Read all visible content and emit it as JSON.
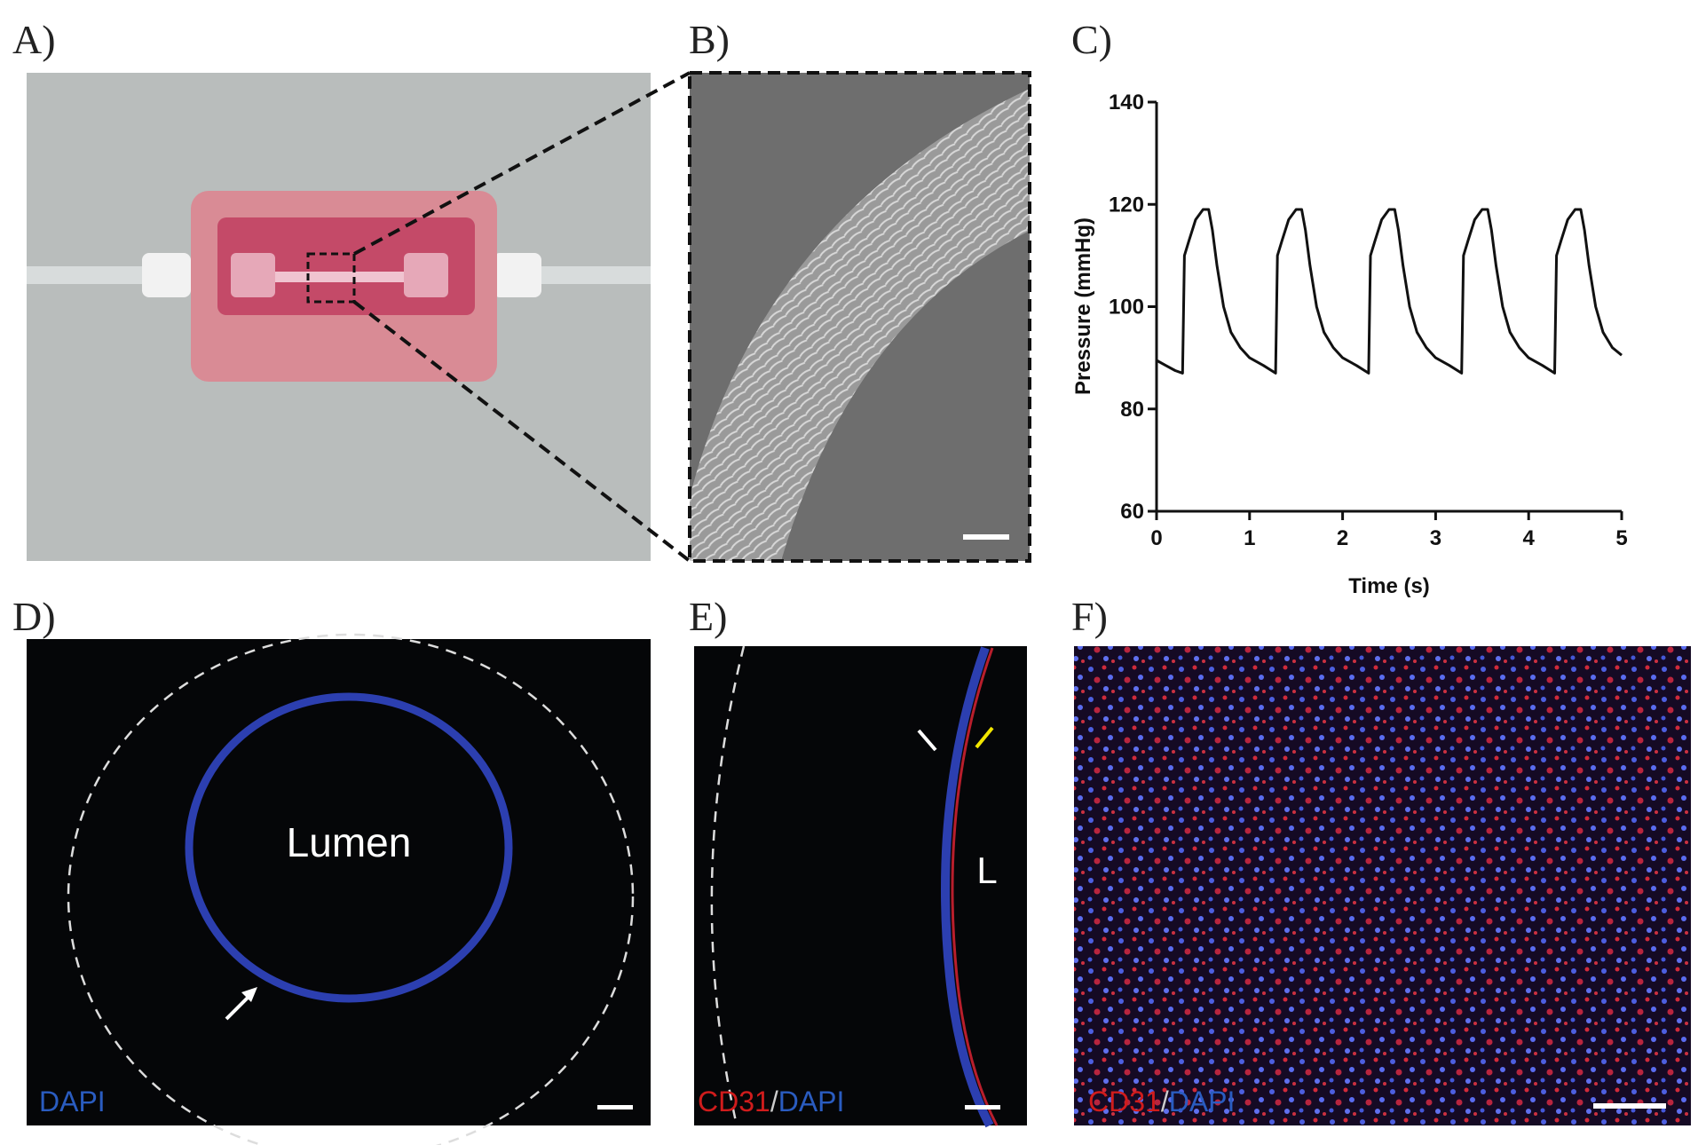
{
  "panels": {
    "a": {
      "label": "A)"
    },
    "b": {
      "label": "B)"
    },
    "c": {
      "label": "C)"
    },
    "d": {
      "label": "D)",
      "lumen": "Lumen",
      "stain": "DAPI"
    },
    "e": {
      "label": "E)",
      "lumen": "L",
      "stain_red": "CD31",
      "separator": "/",
      "stain_blue": "DAPI"
    },
    "f": {
      "label": "F)",
      "stain_red": "CD31",
      "separator": "/",
      "stain_blue": "DAPI"
    }
  },
  "chart_data": {
    "type": "line",
    "xlabel": "Time (s)",
    "ylabel": "Pressure (mmHg)",
    "color": "#111111",
    "x": [
      0,
      0.1,
      0.2,
      0.28,
      0.3,
      0.35,
      0.42,
      0.5,
      0.56,
      0.6,
      0.65,
      0.72,
      0.8,
      0.9,
      1.0,
      1.15,
      1.28,
      1.3,
      1.35,
      1.42,
      1.5,
      1.56,
      1.6,
      1.65,
      1.72,
      1.8,
      1.9,
      2.0,
      2.15,
      2.28,
      2.3,
      2.35,
      2.42,
      2.5,
      2.56,
      2.6,
      2.65,
      2.72,
      2.8,
      2.9,
      3.0,
      3.15,
      3.28,
      3.3,
      3.35,
      3.42,
      3.5,
      3.56,
      3.6,
      3.65,
      3.72,
      3.8,
      3.9,
      4.0,
      4.15,
      4.28,
      4.3,
      4.35,
      4.42,
      4.5,
      4.56,
      4.6,
      4.65,
      4.72,
      4.8,
      4.9,
      5.0
    ],
    "values": [
      89.5,
      88.5,
      87.5,
      87,
      110,
      113,
      117,
      119,
      119,
      115,
      108,
      100,
      95,
      92,
      90,
      88.5,
      87,
      110,
      113,
      117,
      119,
      119,
      115,
      108,
      100,
      95,
      92,
      90,
      88.5,
      87,
      110,
      113,
      117,
      119,
      119,
      115,
      108,
      100,
      95,
      92,
      90,
      88.5,
      87,
      110,
      113,
      117,
      119,
      119,
      115,
      108,
      100,
      95,
      92,
      90,
      88.5,
      87,
      110,
      113,
      117,
      119,
      119,
      115,
      108,
      100,
      95,
      92,
      90.5
    ],
    "xlim": [
      0,
      5
    ],
    "xticks": [
      0,
      1,
      2,
      3,
      4,
      5
    ],
    "ylim": [
      60,
      140
    ],
    "yticks": [
      60,
      80,
      100,
      120,
      140
    ]
  }
}
